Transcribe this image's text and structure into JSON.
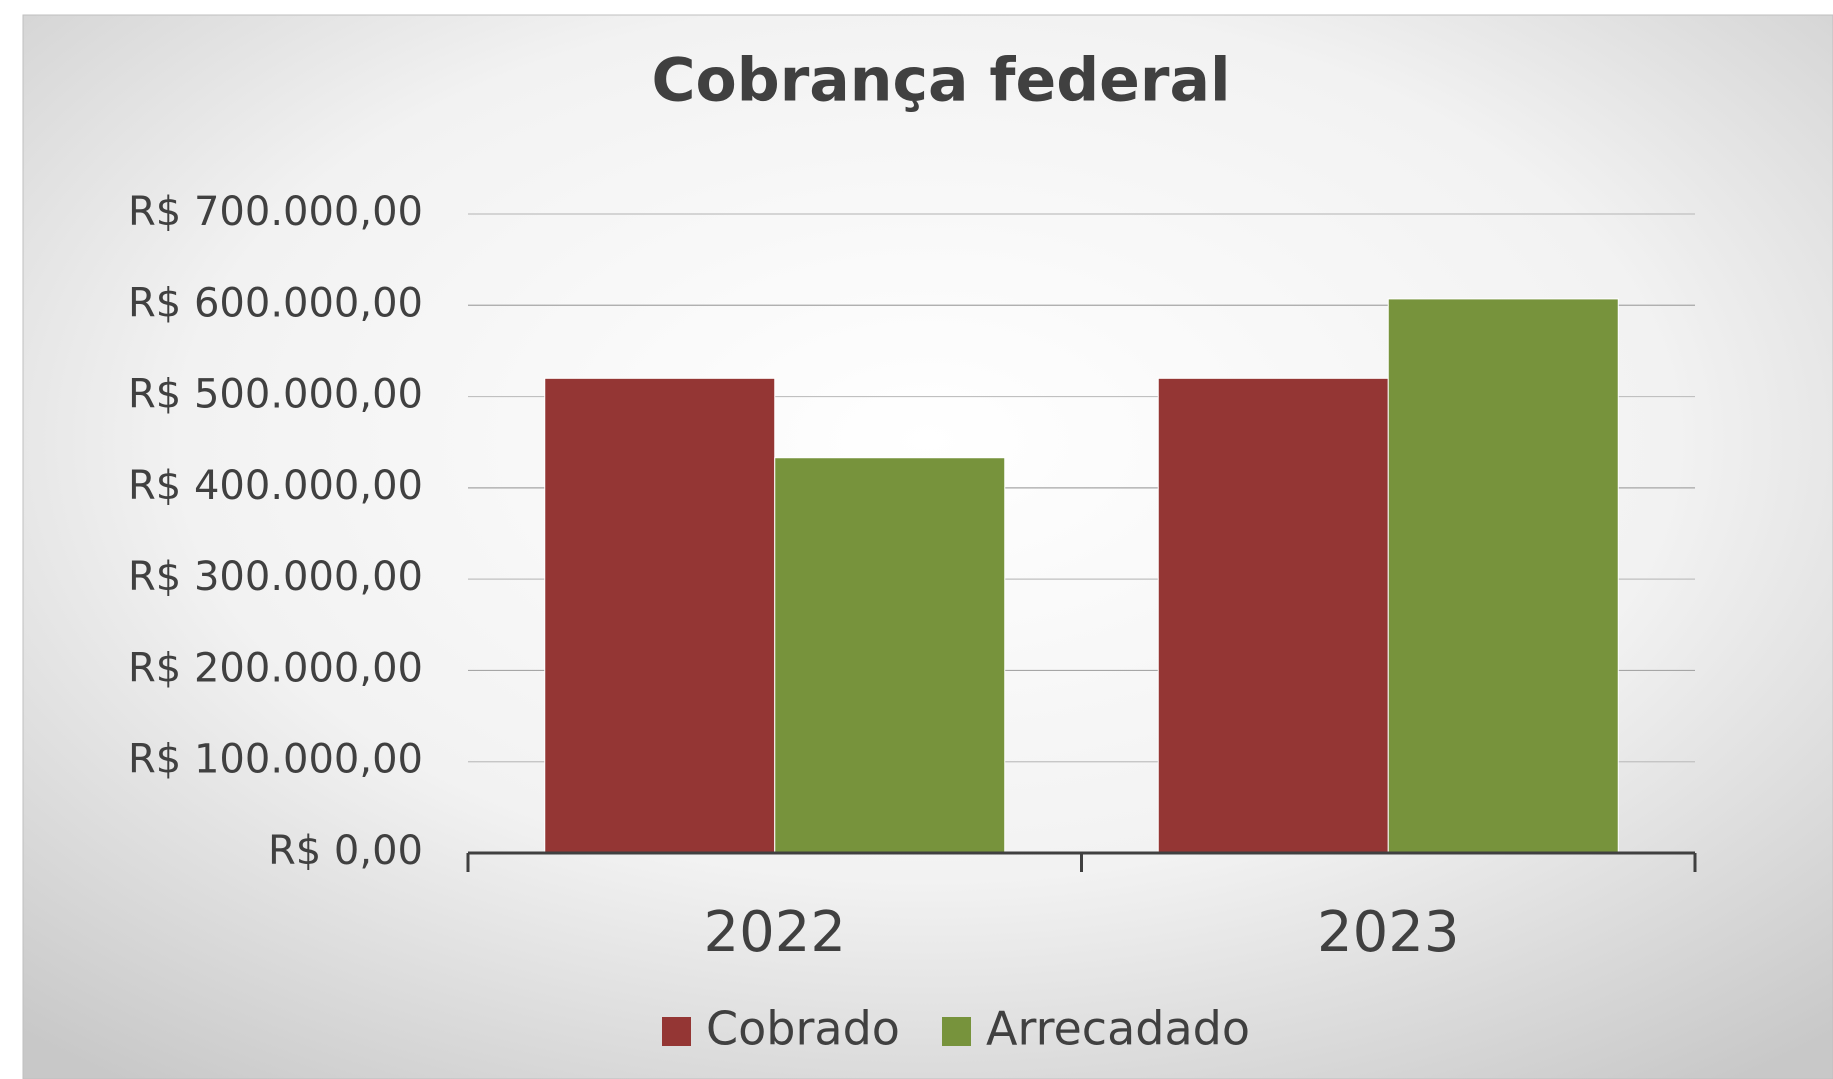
{
  "chart_data": {
    "type": "bar",
    "title": "Cobrança federal",
    "categories": [
      "2022",
      "2023"
    ],
    "series": [
      {
        "name": "Cobrado",
        "color": "#943634",
        "values": [
          520000,
          520000
        ]
      },
      {
        "name": "Arrecadado",
        "color": "#77933c",
        "values": [
          433000,
          607000
        ]
      }
    ],
    "ylim": [
      0,
      700000
    ],
    "yticks": [
      {
        "value": 0,
        "label": "R$ 0,00"
      },
      {
        "value": 100000,
        "label": "R$ 100.000,00"
      },
      {
        "value": 200000,
        "label": "R$ 200.000,00"
      },
      {
        "value": 300000,
        "label": "R$ 300.000,00"
      },
      {
        "value": 400000,
        "label": "R$ 400.000,00"
      },
      {
        "value": 500000,
        "label": "R$ 500.000,00"
      },
      {
        "value": 600000,
        "label": "R$ 600.000,00"
      },
      {
        "value": 700000,
        "label": "R$ 700.000,00"
      }
    ],
    "grid": true,
    "legend": "bottom"
  }
}
